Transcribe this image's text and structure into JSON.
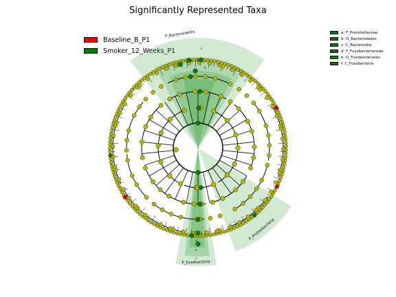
{
  "title": "Significantly Represented Taxa",
  "legend": [
    {
      "label": "Baseline_B_P1",
      "color": "#ff0000"
    },
    {
      "label": "Smoker_12_Weeks_P1",
      "color": "#008000"
    }
  ],
  "taxa_legend": [
    {
      "letter": "a",
      "text": "a: F_Prevotellaceae"
    },
    {
      "letter": "b",
      "text": "b: O_Bacteroidales"
    },
    {
      "letter": "c",
      "text": "c: C_Bacteroidia"
    },
    {
      "letter": "d",
      "text": "d: F_Fusobacteriaceae"
    },
    {
      "letter": "e",
      "text": "e: O_Fusobacteriales"
    },
    {
      "letter": "f",
      "text": "f: C_Fusobacteria"
    }
  ],
  "clade_labels": {
    "bacteroidetes": "P_Bacteroidetes",
    "proteobacteria": "P_Proteobacteria",
    "fusobacteria": "P_Fusobacteria"
  },
  "colors": {
    "node": "#b5b800",
    "enriched_smoker": "#0a7a0a",
    "enriched_baseline": "#e00000",
    "highlight": "#4aa84a"
  }
}
